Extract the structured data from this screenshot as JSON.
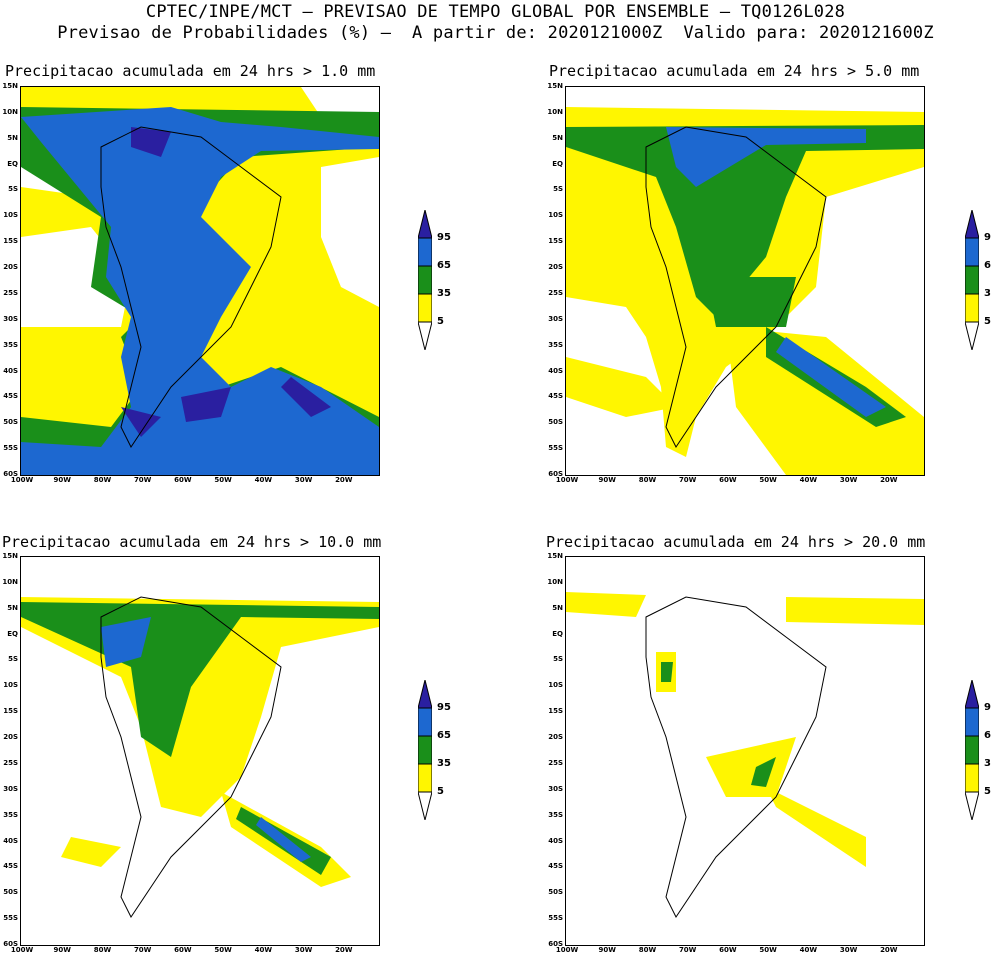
{
  "header": {
    "line1": "CPTEC/INPE/MCT — PREVISAO DE TEMPO GLOBAL POR ENSEMBLE — TQ0126L028",
    "line2": "Previsao de Probabilidades (%) —  A partir de: 2020121000Z  Valido para: 2020121600Z"
  },
  "axes": {
    "lat_labels": [
      "15N",
      "10N",
      "5N",
      "EQ",
      "5S",
      "10S",
      "15S",
      "20S",
      "25S",
      "30S",
      "35S",
      "40S",
      "45S",
      "50S",
      "55S",
      "60S"
    ],
    "lon_labels": [
      "100W",
      "90W",
      "80W",
      "70W",
      "60W",
      "50W",
      "40W",
      "30W",
      "20W"
    ]
  },
  "colorbar": {
    "levels": [
      "95",
      "65",
      "35",
      "5"
    ],
    "colors": {
      "c95": "#2a1fa0",
      "c65": "#1d68d0",
      "c35": "#1a8f1a",
      "c5": "#fff600",
      "c0": "#ffffff"
    }
  },
  "panels": [
    {
      "title": "Precipitacao acumulada em 24 hrs > 1.0 mm",
      "map_id": "coverage-heavy"
    },
    {
      "title": "Precipitacao acumulada em 24 hrs > 5.0 mm",
      "map_id": "coverage-medium"
    },
    {
      "title": "Precipitacao acumulada em 24 hrs > 10.0 mm",
      "map_id": "coverage-light"
    },
    {
      "title": "Precipitacao acumulada em 24 hrs > 20.0 mm",
      "map_id": "coverage-sparse"
    }
  ]
}
